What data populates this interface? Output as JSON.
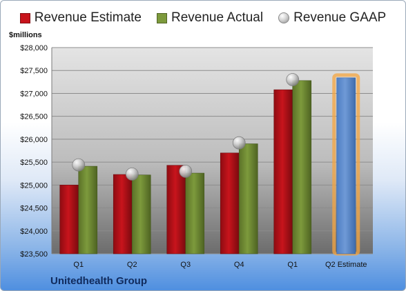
{
  "legend": {
    "estimate": "Revenue Estimate",
    "actual": "Revenue Actual",
    "gaap": "Revenue GAAP"
  },
  "unit_label": "$millions",
  "company": "Unitedhealth Group",
  "colors": {
    "estimate": "#c8141c",
    "actual": "#7d9a3c",
    "gaap": "#b8b8b8",
    "forecast": "#6f9ad6",
    "forecast_glow": "#f5a640"
  },
  "chart_data": {
    "type": "bar",
    "categories": [
      "Q1",
      "Q2",
      "Q3",
      "Q4",
      "Q1",
      "Q2 Estimate"
    ],
    "series": [
      {
        "name": "Revenue Estimate",
        "values": [
          25000,
          25230,
          25430,
          25700,
          27080,
          27340
        ]
      },
      {
        "name": "Revenue Actual",
        "values": [
          25410,
          25220,
          25260,
          25900,
          27280,
          null
        ]
      },
      {
        "name": "Revenue GAAP",
        "values": [
          25440,
          25240,
          25300,
          25920,
          27300,
          null
        ]
      }
    ],
    "ylim": [
      23500,
      28000
    ],
    "yticks": [
      {
        "v": 23500,
        "label": "$23,500"
      },
      {
        "v": 24000,
        "label": "$24,000"
      },
      {
        "v": 24500,
        "label": "$24,500"
      },
      {
        "v": 25000,
        "label": "$25,000"
      },
      {
        "v": 25500,
        "label": "$25,500"
      },
      {
        "v": 26000,
        "label": "$26,000"
      },
      {
        "v": 26500,
        "label": "$26,500"
      },
      {
        "v": 27000,
        "label": "$27,000"
      },
      {
        "v": 27500,
        "label": "$27,500"
      },
      {
        "v": 28000,
        "label": "$28,000"
      }
    ],
    "forecast_index": 5,
    "grid": true,
    "legend_position": "top"
  }
}
